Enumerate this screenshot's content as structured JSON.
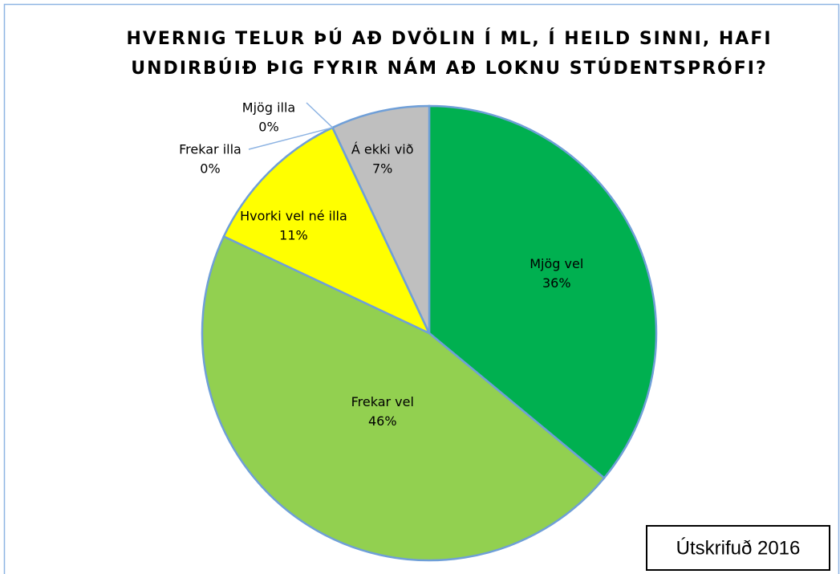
{
  "chart_data": {
    "type": "pie",
    "title": [
      "HVERNIG TELUR ÞÚ AÐ DVÖLIN Í ML, Í HEILD SINNI, HAFI",
      "UNDIRBÚIÐ ÞIG FYRIR NÁM AÐ LOKNU STÚDENTSPRÓFI?"
    ],
    "categories": [
      "Mjög vel",
      "Frekar vel",
      "Hvorki vel né illa",
      "Frekar illa",
      "Mjög illa",
      "Á ekki við"
    ],
    "values": [
      36,
      46,
      11,
      0,
      0,
      7
    ],
    "value_labels": [
      "36%",
      "46%",
      "11%",
      "0%",
      "0%",
      "7%"
    ],
    "colors": [
      "#00b050",
      "#92d050",
      "#ffff00",
      "#c0504d",
      "#8064a2",
      "#bfbfbf"
    ],
    "annotation": "Útskrifuð 2016"
  }
}
